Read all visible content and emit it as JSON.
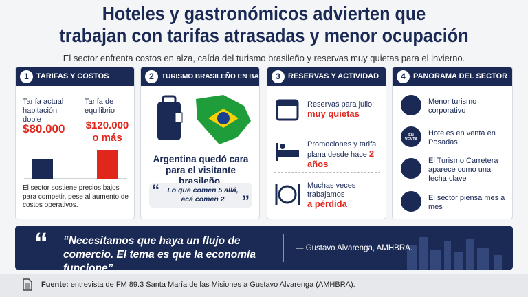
{
  "header": {
    "title_line1": "Hoteles y gastronómicos advierten que",
    "title_line2": "trabajan con tarifas atrasadas y menor ocupación",
    "subtitle": "El sector enfrenta costos en alza, caída del turismo brasileño y reservas muy quietas para el invierno."
  },
  "panels": [
    {
      "number": "1",
      "title": "TARIFAS Y COSTOS",
      "bars": [
        {
          "label": "Tarifa actual habitación doble",
          "value": 80000,
          "value_label": "$80.000"
        },
        {
          "label": "Tarifa de equilibrio",
          "value": 120000,
          "value_label": "$120.000 o más"
        }
      ],
      "note": "El sector sostiene precios bajos para competir, pese al aumento de costos operativos."
    },
    {
      "number": "2",
      "title": "TURISMO BRASILEÑO EN BAJA",
      "headline": "Argentina quedó cara para el visitante brasileño.",
      "quote": "Lo que comen 5 allá, acá comen 2"
    },
    {
      "number": "3",
      "title": "RESERVAS Y ACTIVIDAD",
      "items": [
        {
          "text": "Reservas para julio:",
          "highlight": "muy quietas"
        },
        {
          "text": "Promociones y tarifa plana desde hace",
          "highlight": "2 años"
        },
        {
          "text": "Muchas veces trabajamos",
          "highlight": "a pérdida"
        }
      ]
    },
    {
      "number": "4",
      "title": "PANORAMA DEL SECTOR",
      "sign": "EN VENTA",
      "items": [
        "Menor turismo corporativo",
        "Hoteles en venta en Posadas",
        "El Turismo Carretera aparece como una fecha clave",
        "El sector piensa mes a mes"
      ]
    }
  ],
  "quote": {
    "text": "“Necesitamos que haya un flujo de comercio. El tema es que la economía funcione”",
    "author": "— Gustavo Alvarenga, AMHBRA."
  },
  "footer": {
    "label": "Fuente:",
    "text": "entrevista de FM 89.3 Santa María de las Misiones a Gustavo Alvarenga (AMHBRA)."
  }
}
